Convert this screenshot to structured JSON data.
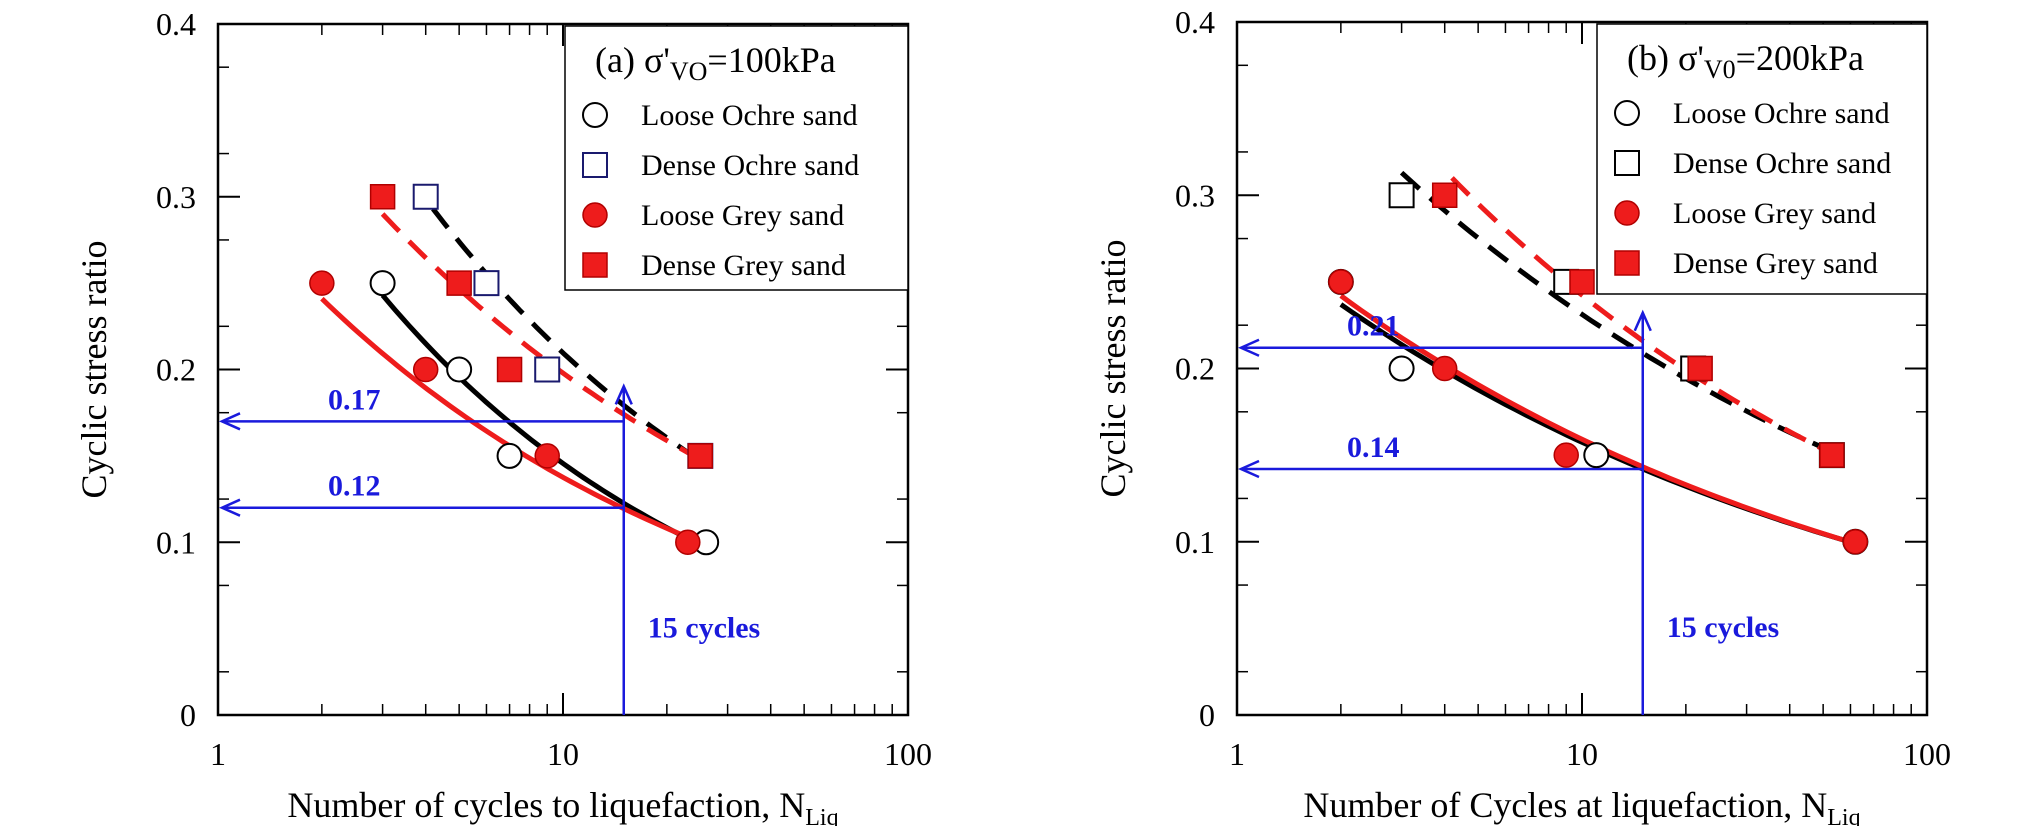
{
  "chart_data": [
    {
      "type": "scatter",
      "panel_title": "(a) σ'",
      "panel_title_sub": "VO",
      "panel_title_tail": "=100kPa",
      "ylabel": "Cyclic stress ratio",
      "xlabel_main": "Number of cycles to liquefaction, N",
      "xlabel_sub": "Liq",
      "x_scale": "log",
      "xlim": [
        1,
        100
      ],
      "ylim": [
        0,
        0.4
      ],
      "x_ticks": [
        "1",
        "10",
        "100"
      ],
      "y_ticks": [
        "0",
        "0.1",
        "0.2",
        "0.3",
        "0.4"
      ],
      "legend_position": "top-right",
      "series": [
        {
          "name": "Loose Ochre sand",
          "marker": "open-circle",
          "color": "#000000",
          "points": [
            [
              3,
              0.25
            ],
            [
              5,
              0.2
            ],
            [
              7,
              0.15
            ],
            [
              26,
              0.1
            ]
          ]
        },
        {
          "name": "Dense Ochre sand",
          "marker": "open-square",
          "color": "#1a1a6e",
          "points": [
            [
              4,
              0.3
            ],
            [
              6,
              0.25
            ],
            [
              9,
              0.2
            ],
            [
              25,
              0.15
            ]
          ]
        },
        {
          "name": "Loose Grey sand",
          "marker": "filled-circle",
          "color": "#ee1c1c",
          "points": [
            [
              2,
              0.25
            ],
            [
              4,
              0.2
            ],
            [
              9,
              0.15
            ],
            [
              23,
              0.1
            ]
          ]
        },
        {
          "name": "Dense Grey sand",
          "marker": "filled-square",
          "color": "#ee1c1c",
          "points": [
            [
              3,
              0.3
            ],
            [
              5,
              0.25
            ],
            [
              7,
              0.2
            ],
            [
              25,
              0.15
            ]
          ]
        }
      ],
      "fits": [
        {
          "series": "Loose Ochre sand",
          "style": "solid",
          "color": "#000000",
          "x": [
            3,
            26
          ],
          "y": [
            0.243,
            0.097
          ]
        },
        {
          "series": "Loose Grey sand",
          "style": "solid",
          "color": "#ee1c1c",
          "x": [
            2,
            25
          ],
          "y": [
            0.241,
            0.1
          ]
        },
        {
          "series": "Dense Ochre sand",
          "style": "dashed",
          "color": "#000000",
          "x": [
            4.2,
            26
          ],
          "y": [
            0.293,
            0.145
          ]
        },
        {
          "series": "Dense Grey sand",
          "style": "dashed",
          "color": "#ee1c1c",
          "x": [
            3,
            25
          ],
          "y": [
            0.29,
            0.148
          ]
        }
      ],
      "annotations": {
        "color": "#1a1adc",
        "cycles_label": "15 cycles",
        "cycles_x": 15,
        "levels": [
          {
            "label": "0.17",
            "y": 0.17
          },
          {
            "label": "0.12",
            "y": 0.12
          }
        ]
      }
    },
    {
      "type": "scatter",
      "panel_title": "(b) σ'",
      "panel_title_sub": "V0",
      "panel_title_tail": "=200kPa",
      "ylabel": "Cyclic stress ratio",
      "xlabel_main": "Number of Cycles at liquefaction, N",
      "xlabel_sub": "Liq",
      "x_scale": "log",
      "xlim": [
        1,
        100
      ],
      "ylim": [
        0,
        0.4
      ],
      "x_ticks": [
        "1",
        "10",
        "100"
      ],
      "y_ticks": [
        "0",
        "0.1",
        "0.2",
        "0.3",
        "0.4"
      ],
      "legend_position": "top-right",
      "series": [
        {
          "name": "Loose Ochre sand",
          "marker": "open-circle",
          "color": "#000000",
          "points": [
            [
              2,
              0.25
            ],
            [
              3,
              0.2
            ],
            [
              11,
              0.15
            ],
            [
              62,
              0.1
            ]
          ]
        },
        {
          "name": "Dense Ochre sand",
          "marker": "open-square",
          "color": "#000000",
          "points": [
            [
              3,
              0.3
            ],
            [
              9,
              0.25
            ],
            [
              21,
              0.2
            ],
            [
              53,
              0.15
            ]
          ]
        },
        {
          "name": "Loose Grey sand",
          "marker": "filled-circle",
          "color": "#ee1c1c",
          "points": [
            [
              2,
              0.25
            ],
            [
              4,
              0.2
            ],
            [
              9,
              0.15
            ],
            [
              62,
              0.1
            ]
          ]
        },
        {
          "name": "Dense Grey sand",
          "marker": "filled-square",
          "color": "#ee1c1c",
          "points": [
            [
              4,
              0.3
            ],
            [
              10,
              0.25
            ],
            [
              22,
              0.2
            ],
            [
              53,
              0.15
            ]
          ]
        }
      ],
      "fits": [
        {
          "series": "Loose Ochre sand",
          "style": "solid",
          "color": "#000000",
          "x": [
            2,
            62
          ],
          "y": [
            0.237,
            0.099
          ]
        },
        {
          "series": "Loose Grey sand",
          "style": "solid",
          "color": "#ee1c1c",
          "x": [
            2,
            62
          ],
          "y": [
            0.242,
            0.099
          ]
        },
        {
          "series": "Dense Ochre sand",
          "style": "dashed",
          "color": "#000000",
          "x": [
            3,
            53
          ],
          "y": [
            0.313,
            0.152
          ]
        },
        {
          "series": "Dense Grey sand",
          "style": "dashed",
          "color": "#ee1c1c",
          "x": [
            4.2,
            53
          ],
          "y": [
            0.31,
            0.151
          ]
        }
      ],
      "annotations": {
        "color": "#1a1adc",
        "cycles_label": "15 cycles",
        "cycles_x": 15,
        "levels": [
          {
            "label": "0.21",
            "y": 0.212
          },
          {
            "label": "0.14",
            "y": 0.142
          }
        ]
      }
    }
  ]
}
